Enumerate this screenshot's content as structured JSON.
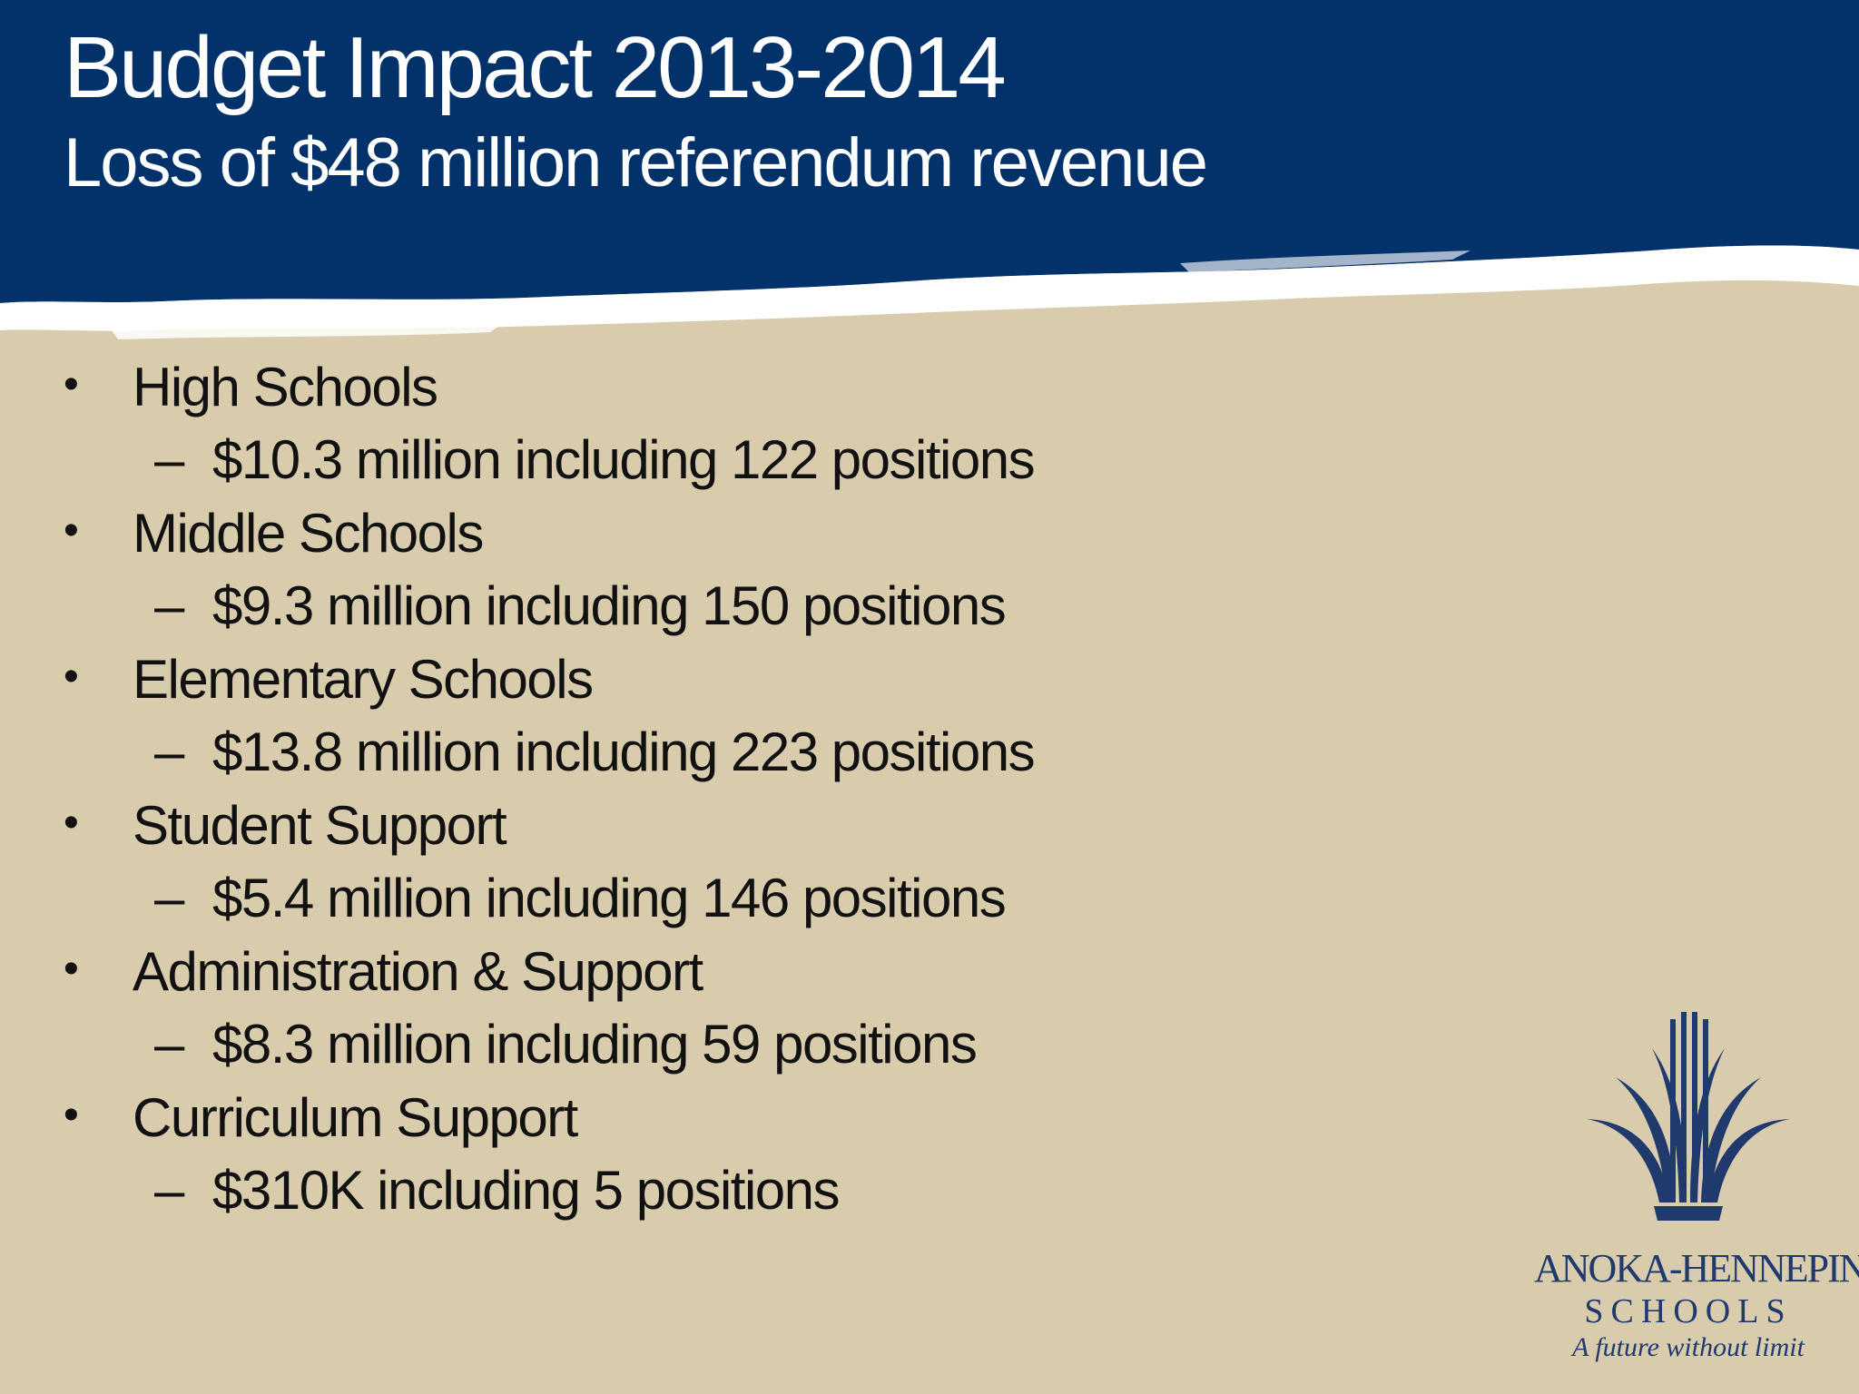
{
  "slide": {
    "title": "Budget Impact 2013-2014",
    "subtitle": "Loss of $48 million referendum revenue",
    "bullet_marker": "•",
    "sub_marker": "–",
    "items": [
      {
        "label": "High Schools",
        "detail": "$10.3 million including 122 positions"
      },
      {
        "label": "Middle Schools",
        "detail": "$9.3 million including 150 positions"
      },
      {
        "label": "Elementary Schools",
        "detail": "$13.8 million including 223 positions"
      },
      {
        "label": "Student Support",
        "detail": "$5.4 million including 146 positions"
      },
      {
        "label": "Administration & Support",
        "detail": "$8.3 million including 59 positions"
      },
      {
        "label": "Curriculum Support",
        "detail": "$310K including 5 positions"
      }
    ]
  },
  "logo": {
    "icon": "fountain-logo-icon",
    "name": "ANOKA-HENNEPIN",
    "schools": "SCHOOLS",
    "tagline": "A future without limit"
  },
  "colors": {
    "header_blue": "#03326a",
    "background_tan": "#d9ccac",
    "logo_blue": "#203a6e",
    "text": "#111111"
  }
}
